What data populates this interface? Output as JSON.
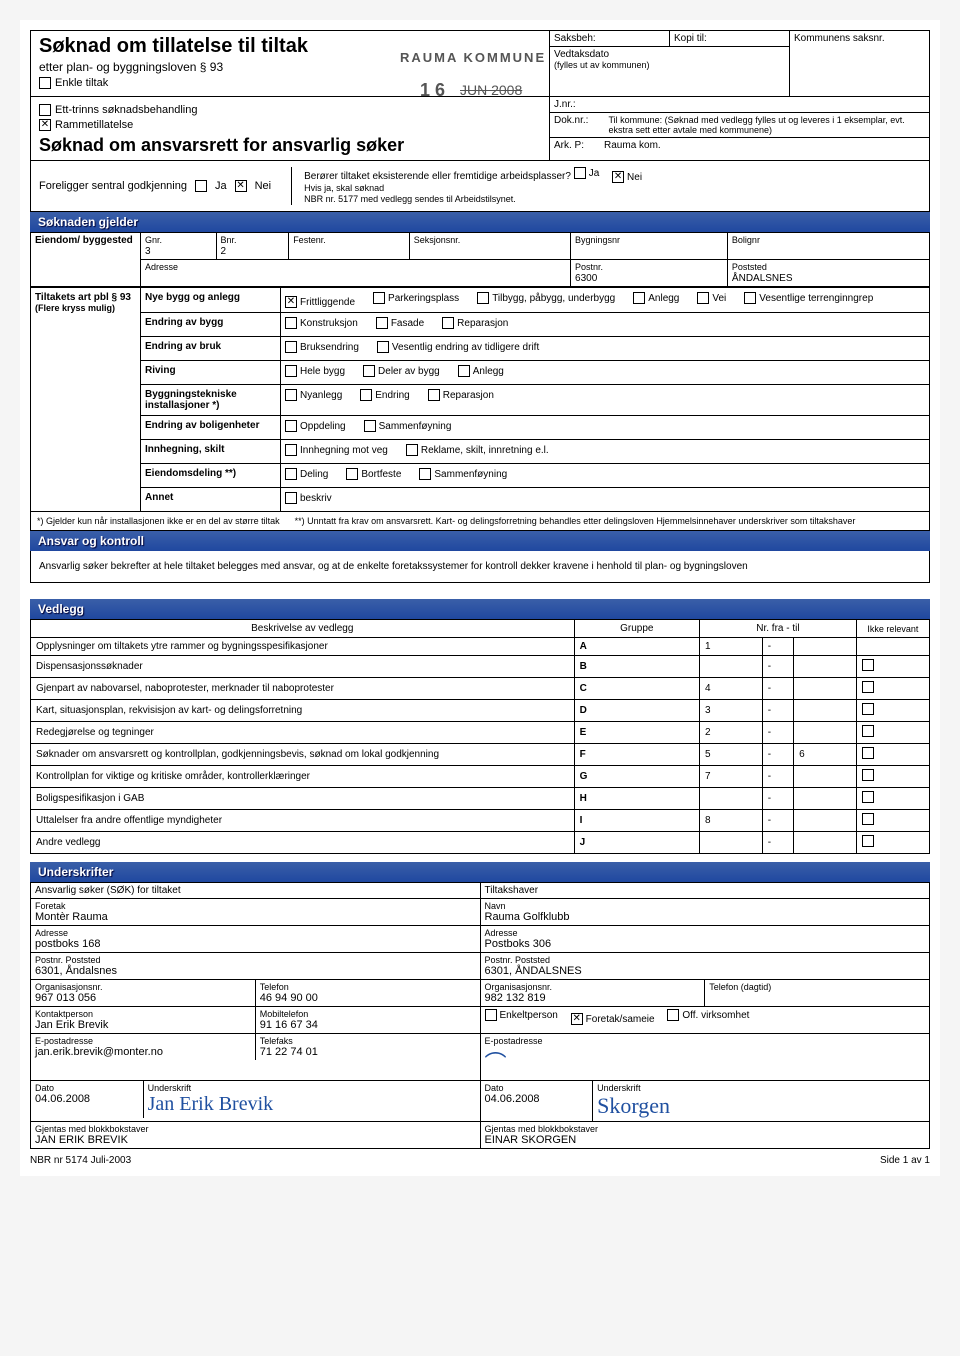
{
  "header": {
    "title": "Søknad om tillatelse til tiltak",
    "subtitle": "etter plan- og byggningsloven § 93",
    "saksbeh": "Saksbeh:",
    "kopitil": "Kopi til:",
    "kommune_stamp": "RAUMA KOMMUNE",
    "vedtaksdato_lbl": "Vedtaksdato",
    "vedtaksdato_sub": "(fylles ut av kommunen)",
    "kommunens": "Kommunens saksnr.",
    "stamp_num": "1 6",
    "stamp_date": "JUN 2008",
    "jnr": "J.nr.:",
    "doknr": "Dok.nr.:",
    "arkp": "Ark. P:",
    "tilkommune": "Til kommune: (Søknad med vedlegg fylles ut og leveres i 1 eksemplar, evt. ekstra sett etter avtale med kommunene)",
    "rauma": "Rauma kom.",
    "enkle": "Enkle tiltak",
    "etttrins": "Ett-trinns søknadsbehandling",
    "ramme": "Rammetillatelse",
    "ansvarsrett": "Søknad om ansvarsrett for ansvarlig søker",
    "foreligger": "Foreligger sentral godkjenning",
    "ja": "Ja",
    "nei": "Nei",
    "beroerer": "Berører tiltaket eksisterende eller fremtidige arbeidsplasser?",
    "hvis": "Hvis ja, skal søknad",
    "nbr": "NBR nr. 5177 med vedlegg sendes til Arbeidstilsynet."
  },
  "soknaden": {
    "band": "Søknaden gjelder",
    "eiendom": "Eiendom/ byggested",
    "gnr_lbl": "Gnr.",
    "gnr": "3",
    "bnr_lbl": "Bnr.",
    "bnr": "2",
    "festenr": "Festenr.",
    "seksjonsnr": "Seksjonsnr.",
    "bygningsnr": "Bygningsnr",
    "bolignr": "Bolignr",
    "adresse_lbl": "Adresse",
    "postnr_lbl": "Postnr.",
    "postnr": "6300",
    "poststed_lbl": "Poststed",
    "poststed": "ÅNDALSNES"
  },
  "tiltak": {
    "lbl": "Tiltakets art pbl § 93",
    "sub": "(Flere kryss mulig)",
    "rows": [
      {
        "h": "Nye bygg og anlegg",
        "opts": [
          [
            "Frittliggende",
            true
          ],
          [
            "Parkeringsplass",
            false
          ],
          [
            "Tilbygg, påbygg, underbygg",
            false
          ],
          [
            "Anlegg",
            false
          ],
          [
            "Vei",
            false
          ],
          [
            "Vesentlige terrenginngrep",
            false
          ]
        ]
      },
      {
        "h": "Endring av bygg",
        "opts": [
          [
            "Konstruksjon",
            false
          ],
          [
            "Fasade",
            false
          ],
          [
            "Reparasjon",
            false
          ]
        ]
      },
      {
        "h": "Endring av bruk",
        "opts": [
          [
            "Bruksendring",
            false
          ],
          [
            "Vesentlig endring av tidligere drift",
            false
          ]
        ]
      },
      {
        "h": "Riving",
        "opts": [
          [
            "Hele bygg",
            false
          ],
          [
            "Deler av bygg",
            false
          ],
          [
            "Anlegg",
            false
          ]
        ]
      },
      {
        "h": "Byggningstekniske installasjoner   *)",
        "opts": [
          [
            "Nyanlegg",
            false
          ],
          [
            "Endring",
            false
          ],
          [
            "Reparasjon",
            false
          ]
        ]
      },
      {
        "h": "Endring av boligenheter",
        "opts": [
          [
            "Oppdeling",
            false
          ],
          [
            "Sammenføyning",
            false
          ]
        ]
      },
      {
        "h": "Innhegning, skilt",
        "opts": [
          [
            "Innhegning mot veg",
            false
          ],
          [
            "Reklame, skilt, innretning e.l.",
            false
          ]
        ]
      },
      {
        "h": "Eiendomsdeling **)",
        "opts": [
          [
            "Deling",
            false
          ],
          [
            "Bortfeste",
            false
          ],
          [
            "Sammenføyning",
            false
          ]
        ]
      },
      {
        "h": "Annet",
        "opts": [
          [
            "beskriv",
            false
          ]
        ]
      }
    ],
    "note1": "*) Gjelder kun når installasjonen ikke er en del av større tiltak",
    "note2": "**) Unntatt fra krav om ansvarsrett. Kart- og delingsforretning behandles etter delingsloven Hjemmelsinnehaver underskriver som tiltakshaver"
  },
  "ansvar": {
    "band": "Ansvar og kontroll",
    "text": "Ansvarlig søker bekrefter at hele tiltaket belegges med ansvar, og at de enkelte foretakssystemer for kontroll dekker kravene i henhold til plan- og bygningsloven"
  },
  "vedlegg": {
    "band": "Vedlegg",
    "h_beskr": "Beskrivelse av vedlegg",
    "h_gruppe": "Gruppe",
    "h_nr": "Nr. fra - til",
    "h_ikke": "Ikke relevant",
    "rows": [
      [
        "Opplysninger om tiltakets ytre rammer og bygningsspesifikasjoner",
        "A",
        "1",
        "-",
        "",
        false
      ],
      [
        "Dispensasjonssøknader",
        "B",
        "",
        "-",
        "",
        true
      ],
      [
        "Gjenpart av nabovarsel, naboprotester, merknader til naboprotester",
        "C",
        "4",
        "-",
        "",
        true
      ],
      [
        "Kart, situasjonsplan, rekvisisjon av kart- og delingsforretning",
        "D",
        "3",
        "-",
        "",
        true
      ],
      [
        "Redegjørelse og tegninger",
        "E",
        "2",
        "-",
        "",
        true
      ],
      [
        "Søknader om ansvarsrett og kontrollplan, godkjenningsbevis, søknad om lokal godkjenning",
        "F",
        "5",
        "-",
        "6",
        true
      ],
      [
        "Kontrollplan for viktige og kritiske områder, kontrollerklæringer",
        "G",
        "7",
        "-",
        "",
        true
      ],
      [
        "Boligspesifikasjon i GAB",
        "H",
        "",
        "-",
        "",
        true
      ],
      [
        "Uttalelser fra andre offentlige myndigheter",
        "I",
        "8",
        "-",
        "",
        true
      ],
      [
        "Andre vedlegg",
        "J",
        "",
        "-",
        "",
        true
      ]
    ]
  },
  "under": {
    "band": "Underskrifter",
    "sok_hdr": "Ansvarlig søker (SØK) for tiltaket",
    "tilt_hdr": "Tiltakshaver",
    "foretak_lbl": "Foretak",
    "foretak": "Montèr Rauma",
    "navn_lbl": "Navn",
    "navn": "Rauma Golfklubb",
    "adr_lbl": "Adresse",
    "adr1": "postboks 168",
    "adr2": "Postboks 306",
    "post_lbl": "Postnr. Poststed",
    "post1": "6301, Åndalsnes",
    "post2": "6301, ÅNDALSNES",
    "org_lbl": "Organisasjonsnr.",
    "org1": "967 013 056",
    "org2": "982 132 819",
    "tel_lbl": "Telefon",
    "tel1": "46 94 90 00",
    "tel2_lbl": "Telefon (dagtid)",
    "kontakt_lbl": "Kontaktperson",
    "kontakt": "Jan Erik Brevik",
    "mob_lbl": "Mobiltelefon",
    "mob": "91 16 67 34",
    "enkelt": "Enkeltperson",
    "foretaksam": "Foretak/sameie",
    "off": "Off. virksomhet",
    "epost_lbl": "E-postadresse",
    "epost": "jan.erik.brevik@monter.no",
    "fax_lbl": "Telefaks",
    "fax": "71 22 74 01",
    "dato_lbl": "Dato",
    "dato": "04.06.2008",
    "under_lbl": "Underskrift",
    "sig1": "Jan Erik Brevik",
    "sig2": "Skorgen",
    "blokk_lbl": "Gjentas med blokkbokstaver",
    "blokk1": "JAN ERIK BREVIK",
    "blokk2": "EINAR SKORGEN"
  },
  "footer": {
    "left": "NBR nr 5174 Juli-2003",
    "right": "Side 1 av 1"
  }
}
